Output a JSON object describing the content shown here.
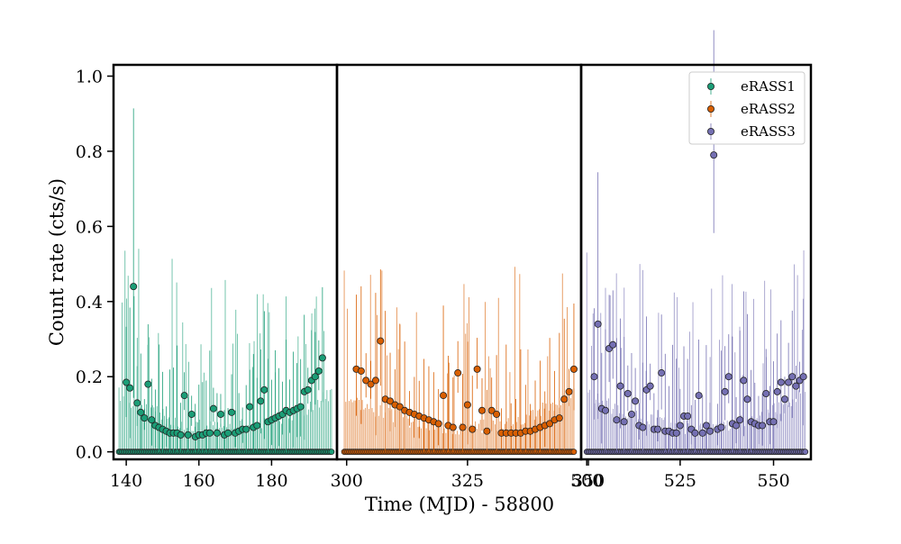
{
  "chart_data": {
    "type": "scatter",
    "title": "",
    "xlabel": "Time (MJD) - 58800",
    "ylabel": "Count rate (cts/s)",
    "ylim": [
      -0.02,
      1.03
    ],
    "yticks": [
      "0.0",
      "0.2",
      "0.4",
      "0.6",
      "0.8",
      "1.0"
    ],
    "grid": false,
    "legend": {
      "position": "top-right",
      "entries": [
        "eRASS1",
        "eRASS2",
        "eRASS3"
      ]
    },
    "panels": [
      {
        "xlim": [
          136.5,
          198
        ],
        "xticks": [
          "140",
          "160",
          "180"
        ]
      },
      {
        "xlim": [
          298,
          348.5
        ],
        "xticks": [
          "300",
          "325",
          "350"
        ]
      },
      {
        "xlim": [
          498.5,
          560
        ],
        "xticks": [
          "500",
          "525",
          "550"
        ]
      }
    ],
    "series": [
      {
        "name": "eRASS1",
        "color": "#1b9e77",
        "panel": 0,
        "x": [
          140,
          141,
          142,
          143,
          144,
          145,
          146,
          147,
          148,
          149,
          150,
          151,
          152,
          153,
          154,
          155,
          156,
          157,
          158,
          159,
          160,
          161,
          162,
          163,
          164,
          165,
          166,
          167,
          168,
          169,
          170,
          171,
          172,
          173,
          174,
          175,
          176,
          177,
          178,
          179,
          180,
          181,
          182,
          183,
          184,
          185,
          186,
          187,
          188,
          189,
          190,
          191,
          192,
          193,
          194
        ],
        "y": [
          0.185,
          0.17,
          0.44,
          0.13,
          0.105,
          0.09,
          0.18,
          0.085,
          0.07,
          0.065,
          0.06,
          0.055,
          0.05,
          0.05,
          0.05,
          0.045,
          0.15,
          0.045,
          0.1,
          0.04,
          0.045,
          0.045,
          0.05,
          0.05,
          0.115,
          0.05,
          0.1,
          0.045,
          0.05,
          0.105,
          0.05,
          0.055,
          0.06,
          0.06,
          0.12,
          0.065,
          0.07,
          0.135,
          0.165,
          0.08,
          0.085,
          0.09,
          0.095,
          0.1,
          0.11,
          0.105,
          0.11,
          0.115,
          0.12,
          0.16,
          0.165,
          0.19,
          0.2,
          0.215,
          0.25
        ]
      },
      {
        "name": "eRASS2",
        "color": "#d95f02",
        "panel": 1,
        "x": [
          302,
          303,
          304,
          305,
          306,
          307,
          308,
          309,
          310,
          311,
          312,
          313,
          314,
          315,
          316,
          317,
          318,
          319,
          320,
          321,
          322,
          323,
          324,
          325,
          326,
          327,
          328,
          329,
          330,
          331,
          332,
          333,
          334,
          335,
          336,
          337,
          338,
          339,
          340,
          341,
          342,
          343,
          344,
          345,
          346,
          347
        ],
        "y": [
          0.22,
          0.215,
          0.19,
          0.18,
          0.19,
          0.295,
          0.14,
          0.135,
          0.125,
          0.12,
          0.11,
          0.105,
          0.1,
          0.095,
          0.09,
          0.085,
          0.08,
          0.075,
          0.15,
          0.07,
          0.065,
          0.21,
          0.065,
          0.125,
          0.06,
          0.22,
          0.11,
          0.055,
          0.11,
          0.1,
          0.05,
          0.05,
          0.05,
          0.05,
          0.05,
          0.055,
          0.055,
          0.06,
          0.065,
          0.07,
          0.075,
          0.085,
          0.09,
          0.14,
          0.16,
          0.22
        ]
      },
      {
        "name": "eRASS3",
        "color": "#7570b3",
        "panel": 2,
        "x": [
          502,
          503,
          504,
          505,
          506,
          507,
          508,
          509,
          510,
          511,
          512,
          513,
          514,
          515,
          516,
          517,
          518,
          519,
          520,
          521,
          522,
          523,
          524,
          525,
          526,
          527,
          528,
          529,
          530,
          531,
          532,
          533,
          534,
          535,
          536,
          537,
          538,
          539,
          540,
          541,
          542,
          543,
          544,
          545,
          546,
          547,
          548,
          549,
          550,
          551,
          552,
          553,
          554,
          555,
          556,
          557,
          558
        ],
        "y": [
          0.2,
          0.34,
          0.115,
          0.11,
          0.275,
          0.285,
          0.085,
          0.175,
          0.08,
          0.155,
          0.1,
          0.135,
          0.07,
          0.065,
          0.165,
          0.175,
          0.06,
          0.06,
          0.21,
          0.055,
          0.055,
          0.05,
          0.05,
          0.07,
          0.095,
          0.095,
          0.06,
          0.05,
          0.15,
          0.05,
          0.07,
          0.055,
          0.79,
          0.06,
          0.065,
          0.16,
          0.2,
          0.075,
          0.07,
          0.085,
          0.19,
          0.14,
          0.08,
          0.075,
          0.07,
          0.07,
          0.155,
          0.08,
          0.08,
          0.16,
          0.185,
          0.14,
          0.185,
          0.2,
          0.175,
          0.19,
          0.2
        ]
      }
    ]
  }
}
